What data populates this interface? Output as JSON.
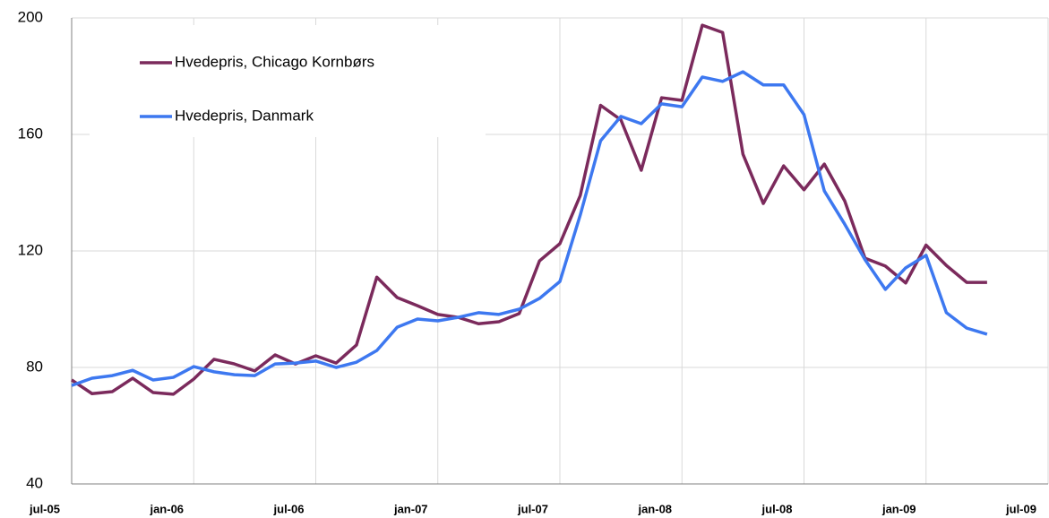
{
  "chart_data": {
    "type": "line",
    "x": [
      0,
      1,
      2,
      3,
      4,
      5,
      6,
      7,
      8,
      9,
      10,
      11,
      12,
      13,
      14,
      15,
      16,
      17,
      18,
      19,
      20,
      21,
      22,
      23,
      24,
      25,
      26,
      27,
      28,
      29,
      30,
      31,
      32,
      33,
      34,
      35,
      36,
      37,
      38,
      39,
      40,
      41,
      42,
      43,
      44,
      45
    ],
    "xlim": [
      0,
      48
    ],
    "xticks": [
      {
        "value": 0,
        "label": "jul-05"
      },
      {
        "value": 6,
        "label": "jan-06"
      },
      {
        "value": 12,
        "label": "jul-06"
      },
      {
        "value": 18,
        "label": "jan-07"
      },
      {
        "value": 24,
        "label": "jul-07"
      },
      {
        "value": 30,
        "label": "jan-08"
      },
      {
        "value": 36,
        "label": "jul-08"
      },
      {
        "value": 42,
        "label": "jan-09"
      },
      {
        "value": 48,
        "label": "jul-09"
      }
    ],
    "ylim": [
      40,
      200
    ],
    "yticks": [
      40,
      80,
      120,
      160,
      200
    ],
    "grid": true,
    "series": [
      {
        "name": "Hvedepris, Chicago Kornbørs",
        "color": "#7b2a5c",
        "values": [
          75.7,
          71,
          71.7,
          76.3,
          71.4,
          70.8,
          76,
          82.8,
          81.2,
          78.8,
          84.3,
          81.2,
          84,
          81.5,
          87.7,
          111,
          104,
          101.2,
          98.2,
          97.2,
          95,
          95.7,
          98.5,
          116.6,
          122.5,
          139,
          170,
          165,
          147.7,
          172.6,
          171.7,
          197.5,
          195,
          153.2,
          136.3,
          149.2,
          141,
          149.8,
          137.2,
          117.5,
          114.8,
          109,
          122,
          115,
          109.2,
          109.2
        ]
      },
      {
        "name": "Hvedepris, Danmark",
        "color": "#3d78f0",
        "values": [
          73.8,
          76.3,
          77.2,
          79,
          75.7,
          76.6,
          80.3,
          78.5,
          77.5,
          77.2,
          81.2,
          81.5,
          82.2,
          80,
          81.8,
          85.8,
          93.8,
          96.6,
          96,
          97.2,
          98.8,
          98.2,
          100,
          103.7,
          109.5,
          132.3,
          157.8,
          166.2,
          163.7,
          170.5,
          169.5,
          179.7,
          178.2,
          181.5,
          177,
          177,
          166.8,
          140.6,
          129.2,
          117,
          106.8,
          114.2,
          118.5,
          98.8,
          93.5,
          91.4
        ]
      }
    ]
  }
}
